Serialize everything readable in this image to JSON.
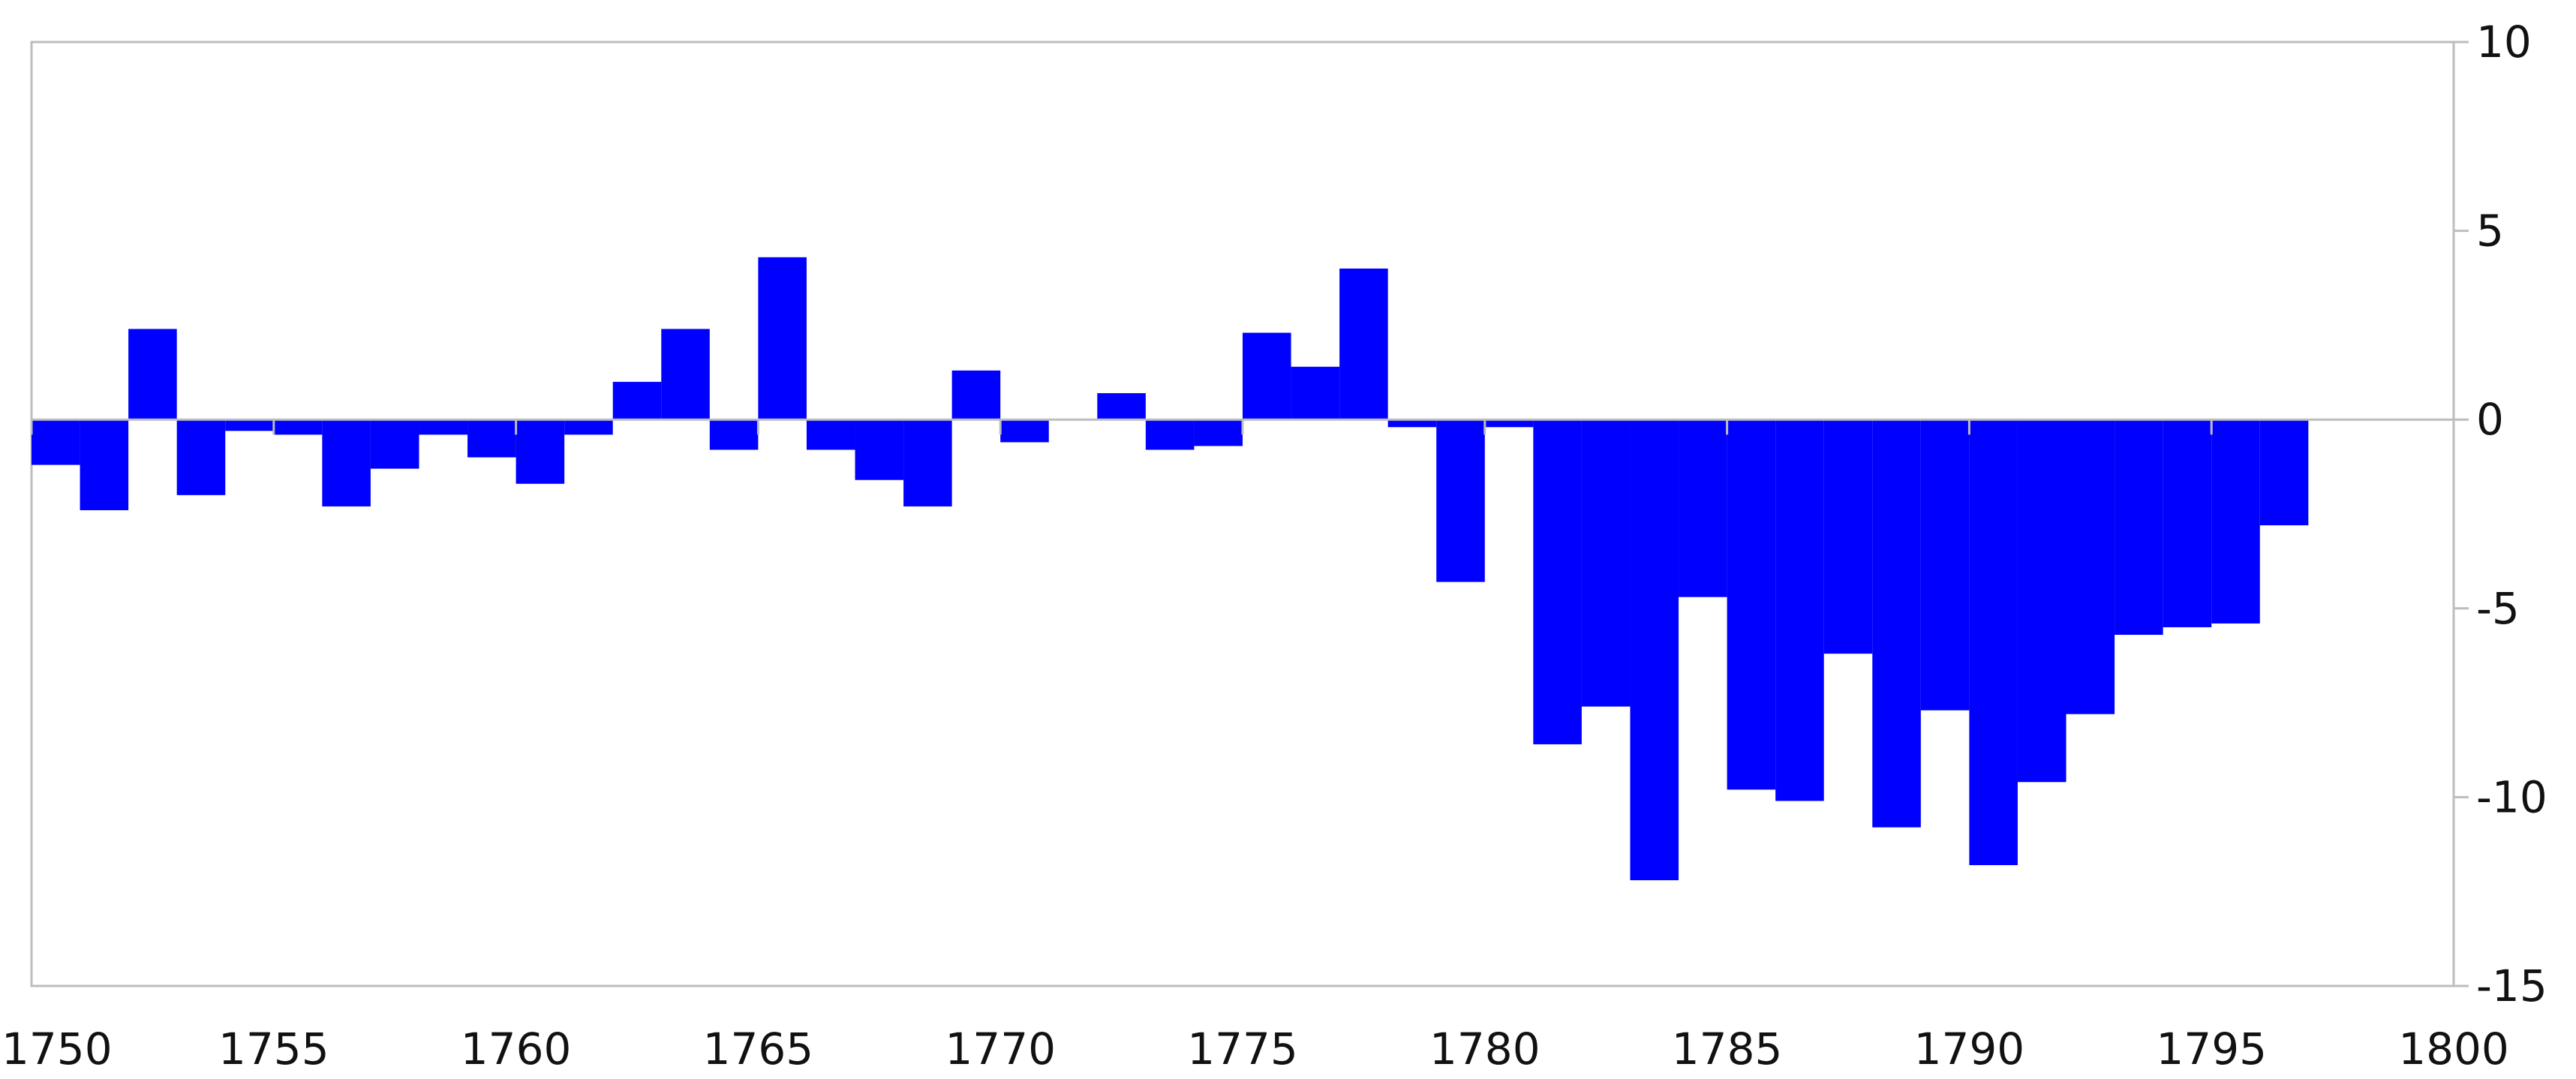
{
  "chart_data": {
    "type": "bar",
    "title": "",
    "xlabel": "",
    "ylabel": "",
    "xlim": [
      1750,
      1800
    ],
    "ylim": [
      -15,
      10
    ],
    "x_ticks": [
      "1750",
      "1755",
      "1760",
      "1765",
      "1770",
      "1775",
      "1780",
      "1785",
      "1790",
      "1795",
      "1800"
    ],
    "y_ticks": [
      "10",
      "5",
      "0",
      "-5",
      "-10",
      "-15"
    ],
    "y_axis_position": "right",
    "grid": false,
    "bar_color": "#0000ff",
    "categories": [
      1750,
      1751,
      1752,
      1753,
      1754,
      1755,
      1756,
      1757,
      1758,
      1759,
      1760,
      1761,
      1762,
      1763,
      1764,
      1765,
      1766,
      1767,
      1768,
      1769,
      1770,
      1771,
      1772,
      1773,
      1774,
      1775,
      1776,
      1777,
      1778,
      1779,
      1780,
      1781,
      1782,
      1783,
      1784,
      1785,
      1786,
      1787,
      1788,
      1789,
      1790,
      1791,
      1792,
      1793,
      1794,
      1795,
      1796
    ],
    "values": [
      -1.2,
      -2.4,
      2.4,
      -2.0,
      -0.3,
      -0.4,
      -2.3,
      -1.3,
      -0.4,
      -1.0,
      -1.7,
      -0.4,
      1.0,
      2.4,
      -0.8,
      4.3,
      -0.8,
      -1.6,
      -2.3,
      1.3,
      -0.6,
      0.0,
      0.7,
      -0.8,
      -0.7,
      2.3,
      1.4,
      4.0,
      -0.2,
      -4.3,
      -0.2,
      -8.6,
      -7.6,
      -12.2,
      -4.7,
      -9.8,
      -10.1,
      -6.2,
      -10.8,
      -7.7,
      -11.8,
      -9.6,
      -7.8,
      -5.7,
      -5.5,
      -5.4,
      -2.8
    ]
  }
}
